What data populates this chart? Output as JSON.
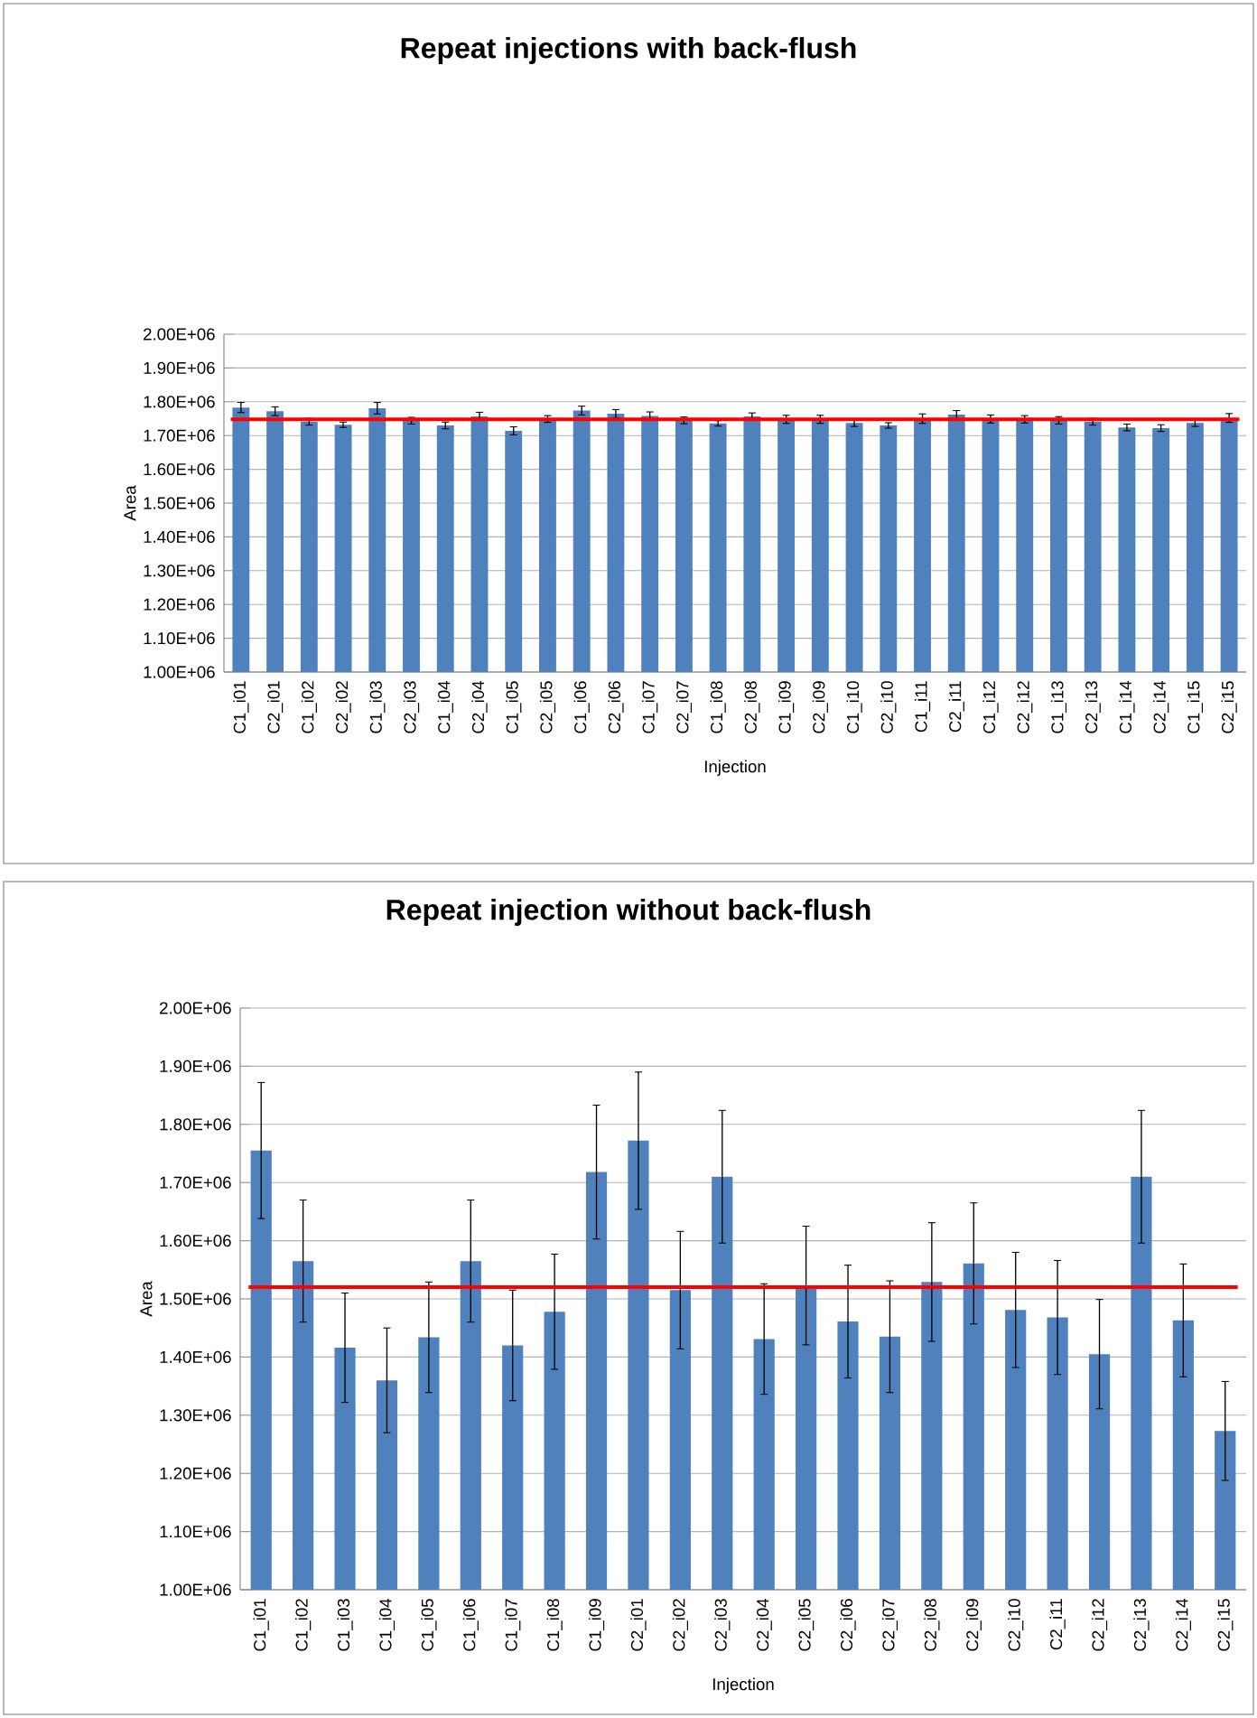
{
  "chart_data": [
    {
      "type": "bar",
      "title": "Repeat injections with back-flush",
      "xlabel": "Injection",
      "ylabel": "Area",
      "categories": [
        "C1_i01",
        "C2_i01",
        "C1_i02",
        "C2_i02",
        "C1_i03",
        "C2_i03",
        "C1_i04",
        "C2_i04",
        "C1_i05",
        "C2_i05",
        "C1_i06",
        "C2_i06",
        "C1_i07",
        "C2_i07",
        "C1_i08",
        "C2_i08",
        "C1_i09",
        "C2_i09",
        "C1_i10",
        "C2_i10",
        "C1_i11",
        "C2_i11",
        "C1_i12",
        "C2_i12",
        "C1_i13",
        "C2_i13",
        "C1_i14",
        "C2_i14",
        "C1_i15",
        "C2_i15"
      ],
      "series": [
        {
          "color": "#4f81bd",
          "values": [
            1783000,
            1772000,
            1741000,
            1732000,
            1781000,
            1744000,
            1730000,
            1757000,
            1714000,
            1749000,
            1774000,
            1765000,
            1758000,
            1745000,
            1736000,
            1757000,
            1748000,
            1748000,
            1737000,
            1730000,
            1750000,
            1762000,
            1749000,
            1748000,
            1745000,
            1741000,
            1724000,
            1722000,
            1737000,
            1752000
          ],
          "errors": [
            15000,
            13000,
            10000,
            8000,
            17000,
            10000,
            10000,
            12000,
            12000,
            10000,
            13000,
            12000,
            12000,
            10000,
            8000,
            10000,
            12000,
            12000,
            10000,
            8000,
            14000,
            12000,
            12000,
            11000,
            11000,
            10000,
            10000,
            10000,
            10000,
            13000
          ]
        }
      ],
      "ylim": [
        1000000,
        2000000
      ],
      "yticks": [
        {
          "value": 1000000,
          "label": "1.00E+06"
        },
        {
          "value": 1100000,
          "label": "1.10E+06"
        },
        {
          "value": 1200000,
          "label": "1.20E+06"
        },
        {
          "value": 1300000,
          "label": "1.30E+06"
        },
        {
          "value": 1400000,
          "label": "1.40E+06"
        },
        {
          "value": 1500000,
          "label": "1.50E+06"
        },
        {
          "value": 1600000,
          "label": "1.60E+06"
        },
        {
          "value": 1700000,
          "label": "1.70E+06"
        },
        {
          "value": 1800000,
          "label": "1.80E+06"
        },
        {
          "value": 1900000,
          "label": "1.90E+06"
        },
        {
          "value": 2000000,
          "label": "2.00E+06"
        }
      ],
      "grid": "y",
      "ref_lines": [
        {
          "axis": "y",
          "value": 1748000,
          "color": "#ff0000"
        }
      ]
    },
    {
      "type": "bar",
      "title": "Repeat injection without back-flush",
      "xlabel": "Injection",
      "ylabel": "Area",
      "categories": [
        "C1_i01",
        "C1_i02",
        "C1_i03",
        "C1_i04",
        "C1_i05",
        "C1_i06",
        "C1_i07",
        "C1_i08",
        "C1_i09",
        "C2_i01",
        "C2_i02",
        "C2_i03",
        "C2_i04",
        "C2_i05",
        "C2_i06",
        "C2_i07",
        "C2_i08",
        "C2_i09",
        "C2_i10",
        "C2_i11",
        "C2_i12",
        "C2_i13",
        "C2_i14",
        "C2_i15"
      ],
      "series": [
        {
          "color": "#4f81bd",
          "values": [
            1755000,
            1565000,
            1416000,
            1360000,
            1434000,
            1565000,
            1420000,
            1478000,
            1718000,
            1772000,
            1515000,
            1710000,
            1431000,
            1523000,
            1461000,
            1435000,
            1529000,
            1561000,
            1481000,
            1468000,
            1405000,
            1710000,
            1463000,
            1273000
          ],
          "errors": [
            117000,
            105000,
            94000,
            90000,
            95000,
            105000,
            95000,
            99000,
            115000,
            118000,
            101000,
            114000,
            95000,
            102000,
            97000,
            96000,
            102000,
            104000,
            99000,
            98000,
            94000,
            114000,
            97000,
            85000
          ]
        }
      ],
      "ylim": [
        1000000,
        2000000
      ],
      "yticks": [
        {
          "value": 1000000,
          "label": "1.00E+06"
        },
        {
          "value": 1100000,
          "label": "1.10E+06"
        },
        {
          "value": 1200000,
          "label": "1.20E+06"
        },
        {
          "value": 1300000,
          "label": "1.30E+06"
        },
        {
          "value": 1400000,
          "label": "1.40E+06"
        },
        {
          "value": 1500000,
          "label": "1.50E+06"
        },
        {
          "value": 1600000,
          "label": "1.60E+06"
        },
        {
          "value": 1700000,
          "label": "1.70E+06"
        },
        {
          "value": 1800000,
          "label": "1.80E+06"
        },
        {
          "value": 1900000,
          "label": "1.90E+06"
        },
        {
          "value": 2000000,
          "label": "2.00E+06"
        }
      ],
      "grid": "y",
      "ref_lines": [
        {
          "axis": "y",
          "value": 1520000,
          "color": "#ff0000"
        }
      ]
    }
  ]
}
